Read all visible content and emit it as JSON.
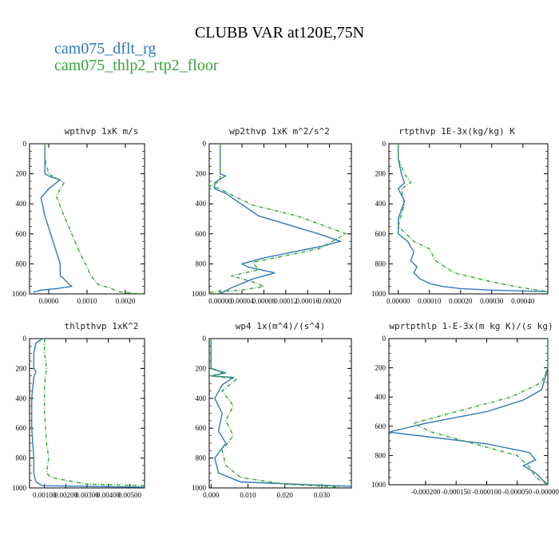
{
  "title": "CLUBB VAR at120E,75N",
  "legend": [
    {
      "label": "cam075_dflt_rg",
      "color": "#2f7ab9"
    },
    {
      "label": "cam075_thlp2_rtp2_floor",
      "color": "#3aa33a"
    }
  ],
  "chart_data": [
    {
      "type": "line",
      "title": "wpthvp  1xK m/s",
      "xlim": [
        -0.0005,
        0.0025
      ],
      "ylim": [
        1000,
        0
      ],
      "yticks": [
        "0",
        "200",
        "400",
        "600",
        "800",
        "1000"
      ],
      "xticks": [
        {
          "v": 0,
          "t": "0.0000"
        },
        {
          "v": 0.001,
          "t": "0.0010"
        },
        {
          "v": 0.002,
          "t": "0.0020"
        }
      ],
      "series": [
        {
          "color": "#2f7ab9",
          "x": [
            -0.0001,
            -0.0001,
            -0.0001,
            0.0,
            0.0001,
            0.0003,
            0.0001,
            0.0,
            -0.0002,
            -0.0001,
            0.0,
            0.0001,
            0.0002,
            0.0003,
            0.0003,
            0.0003,
            0.0004,
            0.0005,
            0.0006,
            0.0002,
            -0.0002,
            -0.0004
          ],
          "y": [
            0,
            100,
            200,
            215,
            225,
            240,
            280,
            300,
            360,
            480,
            560,
            640,
            720,
            800,
            850,
            880,
            900,
            930,
            950,
            965,
            975,
            990
          ]
        },
        {
          "color": "#3aa33a",
          "x": [
            -0.0001,
            -0.0001,
            0.0,
            0.0002,
            0.0004,
            0.0003,
            0.0002,
            0.0004,
            0.0006,
            0.0008,
            0.001,
            0.0011,
            0.0013,
            0.0016,
            0.0018,
            0.0024
          ],
          "y": [
            0,
            100,
            200,
            230,
            260,
            300,
            350,
            480,
            600,
            720,
            820,
            880,
            940,
            960,
            985,
            1000
          ]
        }
      ]
    },
    {
      "type": "line",
      "title": "wp2thvp  1xK m^2/s^2",
      "xlim": [
        -2e-05,
        0.00024
      ],
      "ylim": [
        1000,
        0
      ],
      "yticks": [
        "0",
        "200",
        "400",
        "600",
        "800",
        "1000"
      ],
      "xticks": [
        {
          "v": 0,
          "t": "0.00000"
        },
        {
          "v": 4e-05,
          "t": "0.00004"
        },
        {
          "v": 8e-05,
          "t": "0.00008"
        },
        {
          "v": 0.00012,
          "t": "0.00012"
        },
        {
          "v": 0.00016,
          "t": "0.00016"
        },
        {
          "v": 0.0002,
          "t": "0.00020"
        }
      ],
      "series": [
        {
          "color": "#2f7ab9",
          "x": [
            0,
            0,
            0,
            1e-05,
            0,
            -1e-05,
            -1e-05,
            1e-05,
            3e-05,
            7e-05,
            0.00018,
            0.00022,
            0.00019,
            8e-05,
            4e-05,
            5e-05,
            0.0001,
            6e-05,
            2e-05,
            0.0
          ],
          "y": [
            0,
            100,
            200,
            215,
            235,
            260,
            300,
            330,
            380,
            480,
            600,
            650,
            680,
            760,
            800,
            820,
            860,
            900,
            960,
            1000
          ]
        },
        {
          "color": "#3aa33a",
          "x": [
            0,
            0,
            0,
            -2e-05,
            0.0,
            1e-05,
            6e-05,
            0.00014,
            0.00023,
            0.00018,
            6e-05,
            7e-05,
            2e-05,
            6e-05,
            8e-05,
            4e-05,
            -2e-05
          ],
          "y": [
            0,
            100,
            250,
            280,
            300,
            320,
            410,
            480,
            600,
            700,
            790,
            840,
            880,
            920,
            950,
            975,
            990
          ]
        }
      ]
    },
    {
      "type": "line",
      "title": "rtpthvp  1E-3x(kg/kg) K",
      "xlim": [
        -3e-05,
        0.00048
      ],
      "ylim": [
        1000,
        0
      ],
      "yticks": [
        "0",
        "200",
        "400",
        "600",
        "800",
        "1000"
      ],
      "xticks": [
        {
          "v": 0,
          "t": "0.00000"
        },
        {
          "v": 0.0001,
          "t": "0.00010"
        },
        {
          "v": 0.0002,
          "t": "0.00020"
        },
        {
          "v": 0.0003,
          "t": "0.00030"
        },
        {
          "v": 0.0004,
          "t": "0.00040"
        }
      ],
      "series": [
        {
          "color": "#2f7ab9",
          "x": [
            0,
            0,
            1e-05,
            2e-05,
            0.0,
            2e-05,
            0.0,
            0.0,
            3e-05,
            5e-05,
            4e-05,
            6e-05,
            5e-05,
            7e-05,
            0.0001,
            0.00014,
            0.0002,
            0.0003,
            0.00048
          ],
          "y": [
            0,
            100,
            200,
            260,
            300,
            380,
            500,
            600,
            650,
            720,
            780,
            820,
            860,
            900,
            930,
            950,
            965,
            975,
            985
          ]
        },
        {
          "color": "#3aa33a",
          "x": [
            0,
            0,
            2e-05,
            4e-05,
            1e-05,
            2e-05,
            0.0,
            5e-05,
            0.0001,
            0.00012,
            0.00018,
            0.0003,
            0.0004,
            0.00048
          ],
          "y": [
            0,
            100,
            200,
            260,
            300,
            400,
            550,
            650,
            700,
            780,
            860,
            920,
            960,
            985
          ]
        }
      ]
    },
    {
      "type": "line",
      "title": "thlpthvp  1xK^2",
      "xlim": [
        0.0003,
        0.0057
      ],
      "ylim": [
        1000,
        0
      ],
      "yticks": [
        "0",
        "200",
        "400",
        "600",
        "800",
        "1000"
      ],
      "xticks": [
        {
          "v": 0.001,
          "t": "0.00100"
        },
        {
          "v": 0.002,
          "t": "0.00200"
        },
        {
          "v": 0.003,
          "t": "0.00300"
        },
        {
          "v": 0.004,
          "t": "0.00400"
        },
        {
          "v": 0.005,
          "t": "0.00500"
        }
      ],
      "series": [
        {
          "color": "#2f7ab9",
          "x": [
            0.0009,
            0.0006,
            0.0005,
            0.0005,
            0.0006,
            0.0005,
            0.0004,
            0.0004,
            0.0005,
            0.0005,
            0.0006,
            0.0009,
            0.0057
          ],
          "y": [
            0,
            30,
            100,
            200,
            220,
            260,
            400,
            600,
            800,
            900,
            960,
            985,
            995
          ]
        },
        {
          "color": "#3aa33a",
          "x": [
            0.001,
            0.001,
            0.0011,
            0.001,
            0.001,
            0.0011,
            0.0012,
            0.0011,
            0.0013,
            0.003,
            0.0057
          ],
          "y": [
            0,
            100,
            200,
            300,
            500,
            700,
            800,
            900,
            930,
            975,
            985
          ]
        }
      ]
    },
    {
      "type": "line",
      "title": "wp4  1x(m^4)/(s^4)",
      "xlim": [
        -0.0005,
        0.038
      ],
      "ylim": [
        1000,
        0
      ],
      "yticks": [
        "0",
        "200",
        "400",
        "600",
        "800",
        "1000"
      ],
      "xticks": [
        {
          "v": 0,
          "t": "0.000"
        },
        {
          "v": 0.01,
          "t": "0.010"
        },
        {
          "v": 0.02,
          "t": "0.020"
        },
        {
          "v": 0.03,
          "t": "0.030"
        }
      ],
      "series": [
        {
          "color": "#2f7ab9",
          "x": [
            0,
            0,
            0,
            0.004,
            0.0,
            0.006,
            0.003,
            0.001,
            0.003,
            0.002,
            0.004,
            0.001,
            0.002,
            0.008,
            0.038
          ],
          "y": [
            0,
            100,
            200,
            230,
            250,
            260,
            310,
            400,
            500,
            620,
            700,
            800,
            900,
            960,
            990
          ]
        },
        {
          "color": "#3aa33a",
          "x": [
            0,
            0,
            0,
            0.003,
            0.0,
            0.007,
            0.003,
            0.006,
            0.004,
            0.006,
            0.003,
            0.004,
            0.008,
            0.02,
            0.035
          ],
          "y": [
            0,
            100,
            200,
            230,
            250,
            270,
            350,
            450,
            550,
            650,
            750,
            850,
            930,
            975,
            995
          ]
        }
      ]
    },
    {
      "type": "line",
      "title": "wprtpthlp  1-E-3x(m kg K)/(s kg)",
      "xlim": [
        -0.00026,
        0.0
      ],
      "ylim": [
        1000,
        0
      ],
      "yticks": [
        "0",
        "200",
        "400",
        "600",
        "800",
        "1000"
      ],
      "xticks": [
        {
          "v": -0.0002,
          "t": "-0.000200"
        },
        {
          "v": -0.00015,
          "t": "-0.000150"
        },
        {
          "v": -0.0001,
          "t": "-0.000100"
        },
        {
          "v": -5e-05,
          "t": "-0.000050"
        },
        {
          "v": 0,
          "t": "-0.000000"
        }
      ],
      "series": [
        {
          "color": "#2f7ab9",
          "x": [
            0,
            0,
            -1e-05,
            -4e-05,
            -0.0001,
            -0.0002,
            -0.00026,
            -0.0001,
            -3e-05,
            -2e-05,
            -4e-05,
            -2e-05,
            -1e-05,
            0
          ],
          "y": [
            0,
            200,
            350,
            420,
            500,
            580,
            640,
            720,
            780,
            830,
            870,
            920,
            960,
            1000
          ]
        },
        {
          "color": "#3aa33a",
          "x": [
            0,
            0,
            -1e-05,
            -6e-05,
            -0.00015,
            -0.00022,
            -0.00019,
            -0.00012,
            -5e-05,
            -3e-05,
            -2e-05,
            0
          ],
          "y": [
            0,
            200,
            300,
            400,
            500,
            580,
            640,
            720,
            800,
            880,
            950,
            1000
          ]
        }
      ]
    }
  ]
}
